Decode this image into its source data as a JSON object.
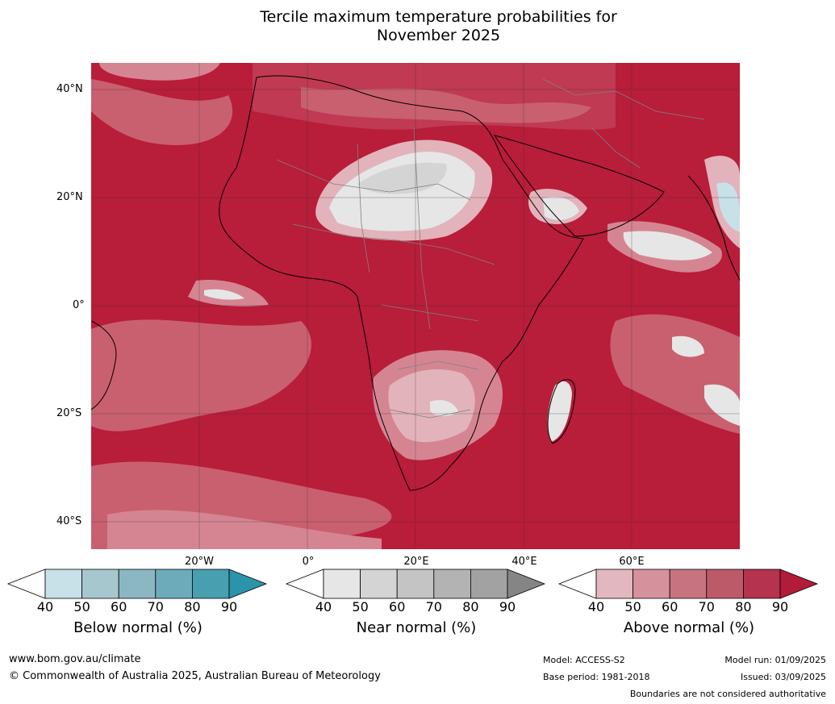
{
  "title_line1": "Tercile maximum temperature probabilities for",
  "title_line2": "November 2025",
  "lat_labels": [
    "40°N",
    "20°N",
    "0°",
    "20°S",
    "40°S"
  ],
  "lon_labels": [
    "20°W",
    "0°",
    "20°E",
    "40°E",
    "60°E"
  ],
  "legends": [
    {
      "title": "Below normal (%)",
      "ticks": [
        "40",
        "50",
        "60",
        "70",
        "80",
        "90"
      ],
      "colors": [
        "#ffffff",
        "#c8e0e8",
        "#a7c7cf",
        "#8bb7c3",
        "#6dabbb",
        "#479faf",
        "#2b94aa"
      ]
    },
    {
      "title": "Near normal (%)",
      "ticks": [
        "40",
        "50",
        "60",
        "70",
        "80",
        "90"
      ],
      "colors": [
        "#ffffff",
        "#e6e6e6",
        "#d4d4d4",
        "#c4c4c4",
        "#b3b3b3",
        "#a2a2a2",
        "#858585"
      ]
    },
    {
      "title": "Above normal (%)",
      "ticks": [
        "40",
        "50",
        "60",
        "70",
        "80",
        "90"
      ],
      "colors": [
        "#ffffff",
        "#e3b7bf",
        "#d5919c",
        "#c87480",
        "#bd5a6a",
        "#b5334e",
        "#b31b3b"
      ]
    }
  ],
  "footer": {
    "website": "www.bom.gov.au/climate",
    "copyright": "© Commonwealth of Australia 2025, Australian Bureau of Meteorology",
    "model": "Model: ACCESS-S2",
    "base_period": "Base period: 1981-2018",
    "model_run": "Model run: 01/09/2025",
    "issued": "Issued: 03/09/2025",
    "boundaries": "Boundaries are not considered authoritative"
  },
  "map_colors": {
    "above_90": "#b81d3a",
    "above_80": "#bf3a52",
    "above_70": "#c9606f",
    "above_60": "#d58592",
    "above_50": "#e2b3bb",
    "near_40": "#e6e6e6",
    "near_50": "#d4d4d4",
    "below_50": "#c8e0e8",
    "coast": "#000000",
    "borders": "#808080"
  }
}
